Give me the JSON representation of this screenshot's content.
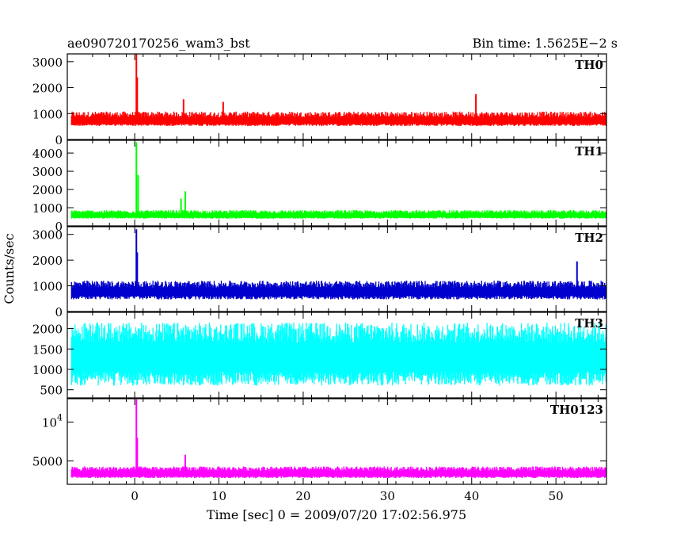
{
  "header": {
    "title": "ae090720170256_wam3_bst",
    "bin_time": "Bin time: 1.5625E−2 s"
  },
  "chart_data": {
    "type": "line",
    "xlabel": "Time [sec] 0 = 2009/07/20 17:02:56.975",
    "ylabel": "Counts/sec",
    "xlim": [
      -8,
      56
    ],
    "x_ticks": [
      0,
      10,
      20,
      30,
      40,
      50
    ],
    "data_x_range": [
      -7.5,
      56
    ],
    "bin_time_s": 0.015625,
    "panels": [
      {
        "name": "TH0",
        "color": "#ff0000",
        "ylim": [
          0,
          3300
        ],
        "y_ticks": [
          {
            "v": 0,
            "t": "0"
          },
          {
            "v": 1000,
            "t": "1000"
          },
          {
            "v": 2000,
            "t": "2000"
          },
          {
            "v": 3000,
            "t": "3000"
          }
        ],
        "baseline": 700,
        "noise_lo": 180,
        "noise_hi": 380,
        "spikes": [
          {
            "x": 0.2,
            "y": 3300
          },
          {
            "x": 0.3,
            "y": 2400
          },
          {
            "x": 5.8,
            "y": 1550
          },
          {
            "x": 10.5,
            "y": 1450
          },
          {
            "x": 40.5,
            "y": 1750
          }
        ]
      },
      {
        "name": "TH1",
        "color": "#00ff00",
        "ylim": [
          0,
          4700
        ],
        "y_ticks": [
          {
            "v": 0,
            "t": "0"
          },
          {
            "v": 1000,
            "t": "1000"
          },
          {
            "v": 2000,
            "t": "2000"
          },
          {
            "v": 3000,
            "t": "3000"
          },
          {
            "v": 4000,
            "t": "4000"
          }
        ],
        "baseline": 550,
        "noise_lo": 150,
        "noise_hi": 320,
        "spikes": [
          {
            "x": 0.2,
            "y": 4600
          },
          {
            "x": 0.4,
            "y": 2800
          },
          {
            "x": 6.0,
            "y": 1900
          },
          {
            "x": 5.5,
            "y": 1500
          }
        ]
      },
      {
        "name": "TH2",
        "color": "#0000cc",
        "ylim": [
          0,
          3300
        ],
        "y_ticks": [
          {
            "v": 0,
            "t": "0"
          },
          {
            "v": 1000,
            "t": "1000"
          },
          {
            "v": 2000,
            "t": "2000"
          },
          {
            "v": 3000,
            "t": "3000"
          }
        ],
        "baseline": 750,
        "noise_lo": 280,
        "noise_hi": 450,
        "spikes": [
          {
            "x": 0.2,
            "y": 3200
          },
          {
            "x": 0.3,
            "y": 2300
          },
          {
            "x": 52.5,
            "y": 1950
          }
        ]
      },
      {
        "name": "TH3",
        "color": "#00ffff",
        "ylim": [
          300,
          2400
        ],
        "y_ticks": [
          {
            "v": 500,
            "t": "500"
          },
          {
            "v": 1000,
            "t": "1000"
          },
          {
            "v": 1500,
            "t": "1500"
          },
          {
            "v": 2000,
            "t": "2000"
          }
        ],
        "baseline": 1300,
        "noise_lo": 700,
        "noise_hi": 850,
        "spikes": []
      },
      {
        "name": "TH0123",
        "color": "#ff00ff",
        "ylim": [
          2000,
          13000
        ],
        "y_ticks": [
          {
            "v": 5000,
            "t": "5000"
          },
          {
            "v": 10000,
            "t": "10",
            "sup": "4"
          }
        ],
        "baseline": 3300,
        "noise_lo": 500,
        "noise_hi": 1000,
        "spikes": [
          {
            "x": 0.2,
            "y": 12900
          },
          {
            "x": 0.3,
            "y": 8000
          },
          {
            "x": 6.0,
            "y": 5800
          }
        ]
      }
    ]
  }
}
